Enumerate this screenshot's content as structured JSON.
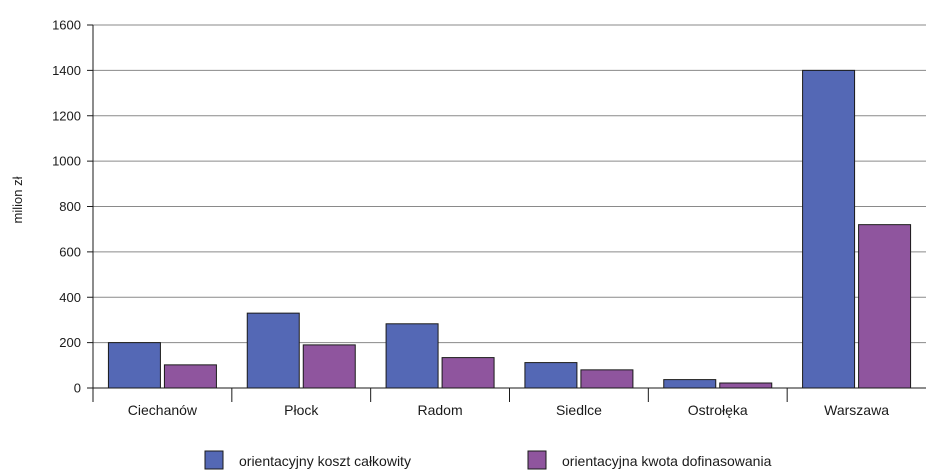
{
  "chart_data": {
    "type": "bar",
    "ylabel": "milion zł",
    "ylim": [
      0,
      1600
    ],
    "yticks": [
      0,
      200,
      400,
      600,
      800,
      1000,
      1200,
      1400,
      1600
    ],
    "grid": true,
    "legend_position": "bottom",
    "categories": [
      "Ciechanów",
      "Płock",
      "Radom",
      "Siedlce",
      "Ostrołęka",
      "Warszawa"
    ],
    "series": [
      {
        "name": "orientacyjny koszt całkowity",
        "color": "#5468b5",
        "values": [
          200,
          330,
          283,
          112,
          37,
          1400
        ]
      },
      {
        "name": "orientacyjna kwota dofinasowania",
        "color": "#8f559e",
        "values": [
          102,
          190,
          134,
          80,
          22,
          720
        ]
      }
    ]
  }
}
